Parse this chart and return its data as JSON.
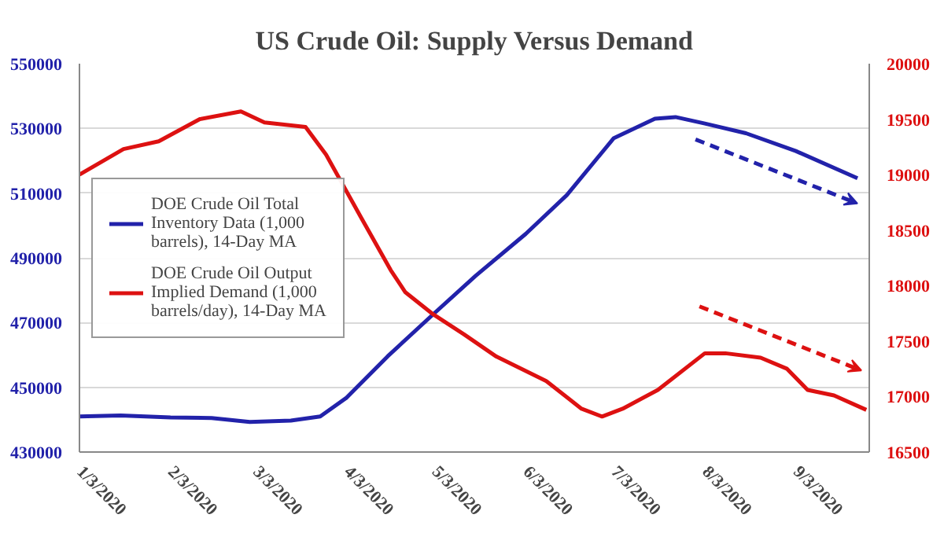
{
  "chart_data": {
    "type": "line",
    "title": "US Crude Oil: Supply Versus Demand",
    "x": [
      "2020-01-03",
      "2020-01-17",
      "2020-02-03",
      "2020-02-17",
      "2020-03-01",
      "2020-03-15",
      "2020-03-25",
      "2020-04-03",
      "2020-04-17",
      "2020-05-03",
      "2020-05-17",
      "2020-06-03",
      "2020-06-17",
      "2020-07-03",
      "2020-07-17",
      "2020-07-24",
      "2020-08-03",
      "2020-08-17",
      "2020-09-03",
      "2020-09-24"
    ],
    "series": [
      {
        "name": "DOE Crude Oil Total Inventory Data (1,000 barrels), 14-Day MA",
        "color": "#2222aa",
        "values": [
          441000,
          441300,
          440700,
          440500,
          439300,
          439700,
          441000,
          446800,
          459600,
          473000,
          484500,
          497400,
          509400,
          527000,
          533000,
          533500,
          531500,
          528500,
          523000,
          514600
        ]
      },
      {
        "name": "DOE Crude Oil Output Implied Demand (1,000 barrels/day), 14-Day MA",
        "color": "#dd1111",
        "axis": "y2",
        "x": [
          "2020-01-03",
          "2020-01-18",
          "2020-01-30",
          "2020-02-13",
          "2020-02-27",
          "2020-03-06",
          "2020-03-20",
          "2020-03-27",
          "2020-04-08",
          "2020-04-18",
          "2020-04-23",
          "2020-05-02",
          "2020-05-13",
          "2020-05-24",
          "2020-06-10",
          "2020-06-22",
          "2020-06-29",
          "2020-07-06",
          "2020-07-18",
          "2020-08-03",
          "2020-08-10",
          "2020-08-22",
          "2020-08-31",
          "2020-09-07",
          "2020-09-16",
          "2020-09-27"
        ],
        "values": [
          19000,
          19230,
          19300,
          19500,
          19570,
          19470,
          19430,
          19180,
          18610,
          18140,
          17940,
          17750,
          17560,
          17360,
          17140,
          16890,
          16820,
          16890,
          17060,
          17390,
          17390,
          17350,
          17250,
          17060,
          17010,
          16880
        ]
      }
    ],
    "xlim": [
      "2020-01-03",
      "2020-09-28"
    ],
    "xticks": [
      {
        "value": "2020-01-03",
        "label": "1/3/2020"
      },
      {
        "value": "2020-02-03",
        "label": "2/3/2020"
      },
      {
        "value": "2020-03-03",
        "label": "3/3/2020"
      },
      {
        "value": "2020-04-03",
        "label": "4/3/2020"
      },
      {
        "value": "2020-05-03",
        "label": "5/3/2020"
      },
      {
        "value": "2020-06-03",
        "label": "6/3/2020"
      },
      {
        "value": "2020-07-03",
        "label": "7/3/2020"
      },
      {
        "value": "2020-08-03",
        "label": "8/3/2020"
      },
      {
        "value": "2020-09-03",
        "label": "9/3/2020"
      }
    ],
    "ylim": [
      430000,
      550000
    ],
    "yticks": [
      430000,
      450000,
      470000,
      490000,
      510000,
      530000,
      550000
    ],
    "y2lim": [
      16500,
      20000
    ],
    "y2ticks": [
      16500,
      17000,
      17500,
      18000,
      18500,
      19000,
      19500,
      20000
    ],
    "grid": "y",
    "legend": "left",
    "line_style": "solid",
    "marker": "none"
  }
}
